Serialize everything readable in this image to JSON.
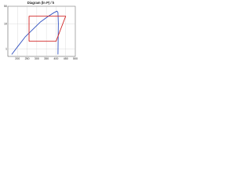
{
  "chart_data": {
    "type": "line",
    "title": "Diagram (ln P) / h",
    "x": [
      170,
      200,
      240,
      280,
      320,
      360,
      390,
      405,
      410,
      412,
      410
    ],
    "series": [
      {
        "color": "#3050c0",
        "x": [
          170,
          200,
          240,
          280,
          320,
          360,
          390,
          405,
          410,
          412,
          410
        ],
        "values": [
          0.6,
          1.2,
          3,
          6,
          12,
          20,
          28,
          32,
          28,
          10,
          0.6
        ]
      },
      {
        "color": "#d02020",
        "x": [
          260,
          400,
          450,
          260,
          260
        ],
        "values": [
          2,
          2,
          20,
          20,
          2
        ]
      }
    ],
    "xlim": [
      150,
      500
    ],
    "xticks": [
      200,
      250,
      300,
      350,
      400,
      450,
      500
    ],
    "ylim": [
      0.5,
      50
    ],
    "yticks": [
      1,
      10,
      50
    ],
    "log_y": true,
    "grid": true
  }
}
